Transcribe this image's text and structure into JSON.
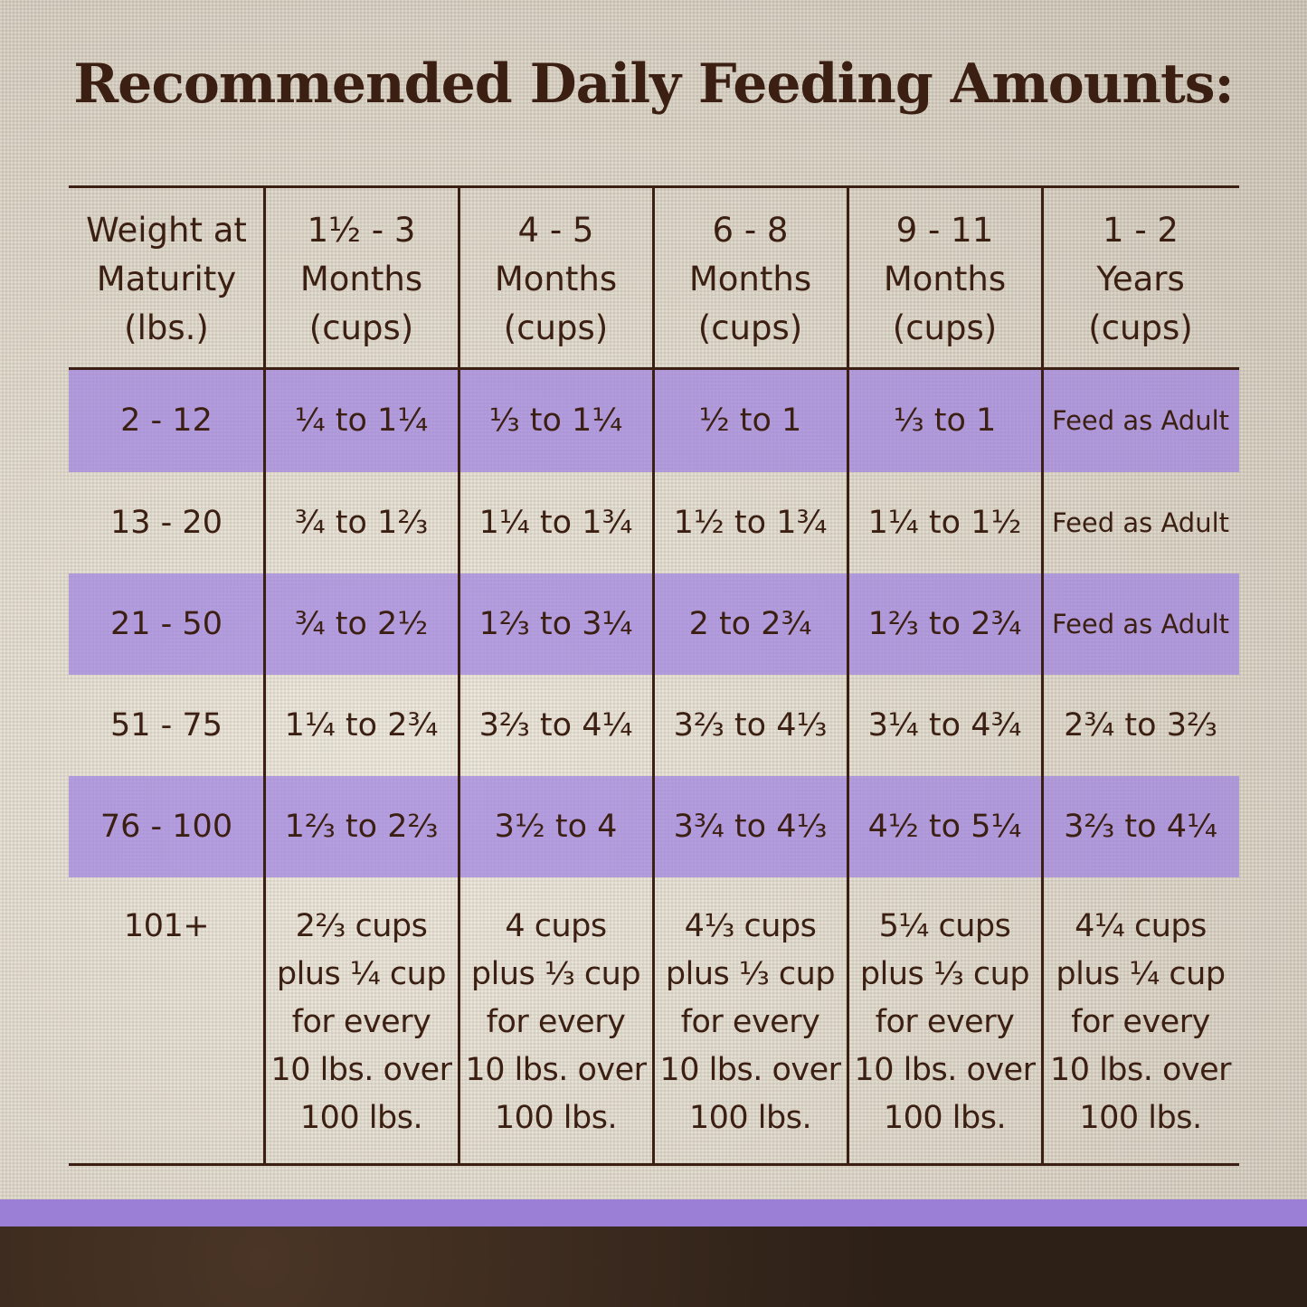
{
  "header": {
    "title": "Recommended Daily Feeding Amounts:"
  },
  "table": {
    "headers": [
      "Weight at\nMaturity\n(lbs.)",
      "1½ - 3\nMonths\n(cups)",
      "4 - 5\nMonths\n(cups)",
      "6 - 8\nMonths\n(cups)",
      "9 - 11\nMonths\n(cups)",
      "1 - 2\nYears\n(cups)"
    ],
    "rows": [
      [
        "2 - 12",
        "¼ to 1¼",
        "⅓ to 1¼",
        "½ to 1",
        "⅓ to 1",
        "Feed as Adult"
      ],
      [
        "13 - 20",
        "¾ to 1⅔",
        "1¼ to 1¾",
        "1½ to 1¾",
        "1¼ to 1½",
        "Feed as Adult"
      ],
      [
        "21 - 50",
        "¾ to 2½",
        "1⅔ to 3¼",
        "2 to 2¾",
        "1⅔ to 2¾",
        "Feed as Adult"
      ],
      [
        "51 - 75",
        "1¼ to 2¾",
        "3⅔ to 4¼",
        "3⅔ to 4⅓",
        "3¼ to 4¾",
        "2¾ to 3⅔"
      ],
      [
        "76 - 100",
        "1⅔ to 2⅔",
        "3½ to 4",
        "3¾ to 4⅓",
        "4½ to 5¼",
        "3⅔ to 4¼"
      ],
      [
        "101+",
        "2⅔ cups\nplus ¼ cup\nfor every\n10 lbs. over\n100 lbs.",
        "4 cups\nplus ⅓ cup\nfor every\n10 lbs. over\n100 lbs.",
        "4⅓ cups\nplus ⅓ cup\nfor every\n10 lbs. over\n100 lbs.",
        "5¼ cups\nplus ⅓ cup\nfor every\n10 lbs. over\n100 lbs.",
        "4¼ cups\nplus ¼ cup\nfor every\n10 lbs. over\n100 lbs."
      ]
    ]
  }
}
